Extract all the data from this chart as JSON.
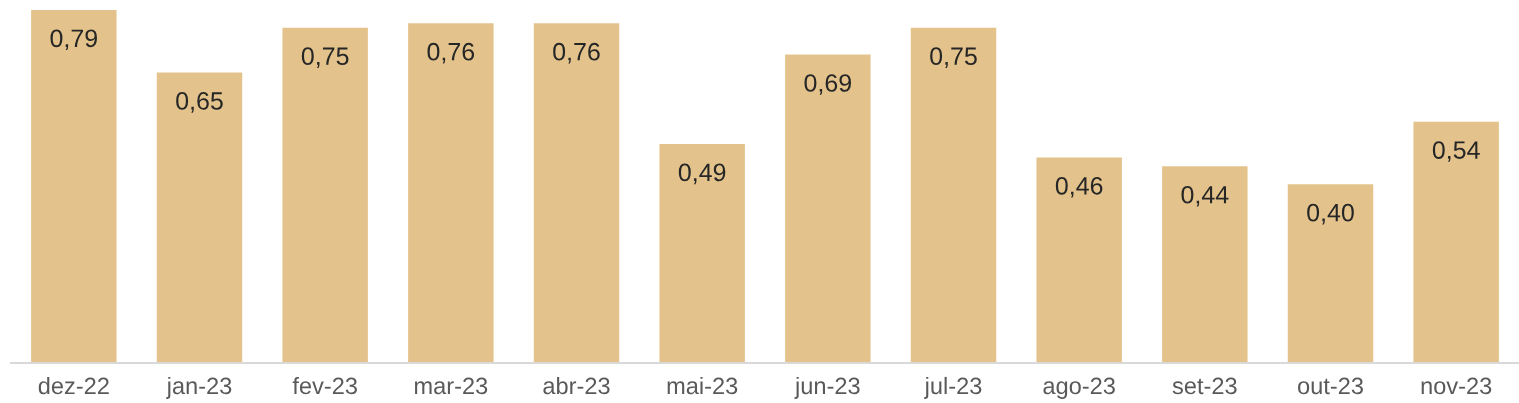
{
  "chart_data": {
    "type": "bar",
    "categories": [
      "dez-22",
      "jan-23",
      "fev-23",
      "mar-23",
      "abr-23",
      "mai-23",
      "jun-23",
      "jul-23",
      "ago-23",
      "set-23",
      "out-23",
      "nov-23"
    ],
    "values": [
      0.79,
      0.65,
      0.75,
      0.76,
      0.76,
      0.49,
      0.69,
      0.75,
      0.46,
      0.44,
      0.4,
      0.54
    ],
    "value_labels": [
      "0,79",
      "0,65",
      "0,75",
      "0,76",
      "0,76",
      "0,49",
      "0,69",
      "0,75",
      "0,46",
      "0,44",
      "0,40",
      "0,54"
    ],
    "color": "#e3c38b"
  }
}
